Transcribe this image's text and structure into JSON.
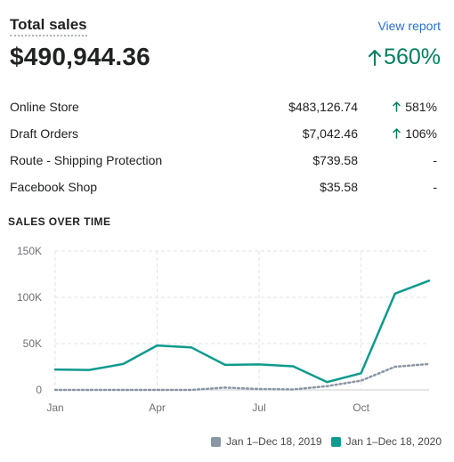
{
  "header": {
    "title": "Total sales",
    "view_report": "View report"
  },
  "total": {
    "value": "$490,944.36",
    "change": "560%",
    "arrow_icon": "arrow-up-icon"
  },
  "breakdown": [
    {
      "name": "Online Store",
      "amount": "$483,126.74",
      "change": "581%",
      "trend": "up"
    },
    {
      "name": "Draft Orders",
      "amount": "$7,042.46",
      "change": "106%",
      "trend": "up"
    },
    {
      "name": "Route - Shipping Protection",
      "amount": "$739.58",
      "change": "-",
      "trend": "none"
    },
    {
      "name": "Facebook Shop",
      "amount": "$35.58",
      "change": "-",
      "trend": "none"
    }
  ],
  "section_title": "SALES OVER TIME",
  "colors": {
    "current": "#0e9a8e",
    "previous": "#8a96a3",
    "positive": "#007f5f",
    "link": "#2c6ecb"
  },
  "chart_data": {
    "type": "line",
    "x_tick_labels": [
      "Jan",
      "Apr",
      "Jul",
      "Oct"
    ],
    "y_tick_labels": [
      "150K",
      "100K",
      "50K",
      "0"
    ],
    "y_ticks": [
      150000,
      100000,
      50000,
      0
    ],
    "ylim": [
      0,
      150000
    ],
    "grid": "dashed vertical and horizontal",
    "legend_position": "bottom-right",
    "series": [
      {
        "name": "Jan 1–Dec 18, 2019",
        "style": "dotted",
        "values": [
          0,
          0,
          0,
          0,
          0,
          2500,
          1000,
          500,
          4000,
          10000,
          25000,
          28000
        ]
      },
      {
        "name": "Jan 1–Dec 18, 2020",
        "style": "solid",
        "values": [
          22000,
          21500,
          28000,
          48000,
          46000,
          27000,
          27500,
          25500,
          8500,
          18000,
          104000,
          118000
        ]
      }
    ]
  }
}
